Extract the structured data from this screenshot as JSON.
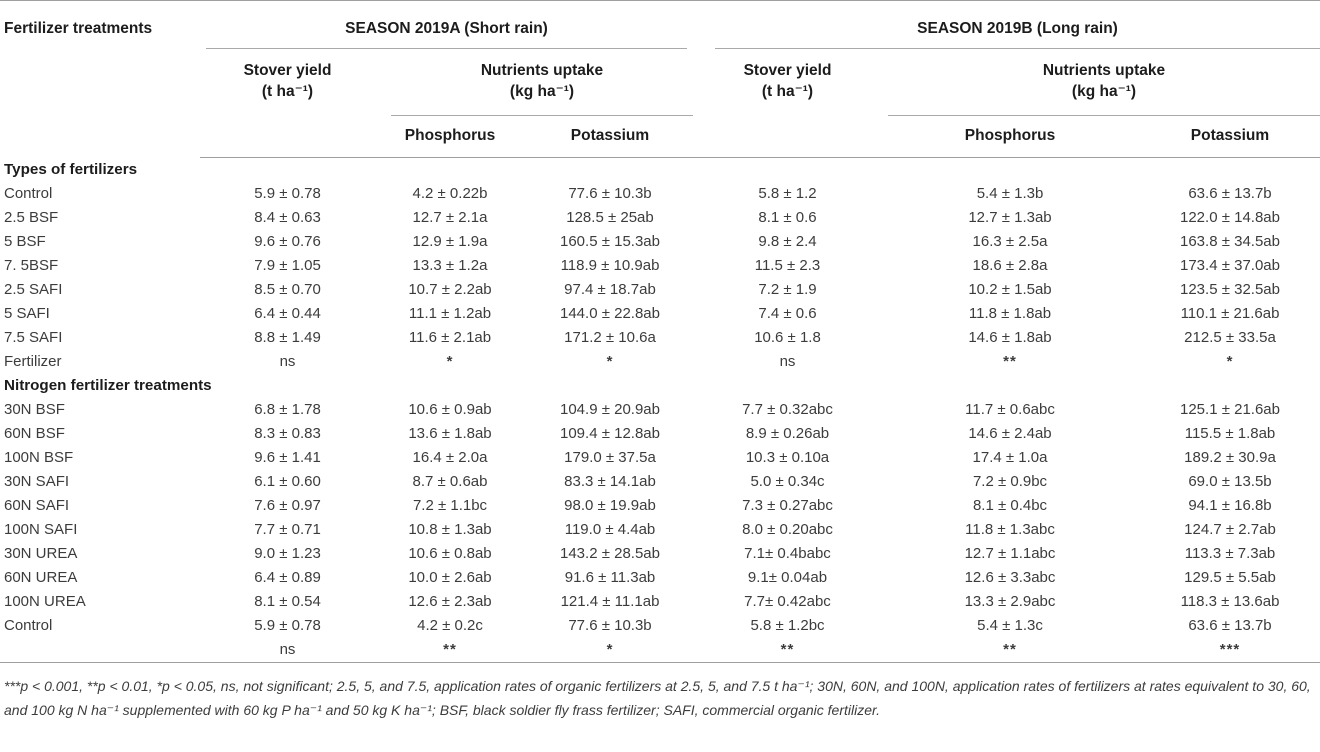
{
  "table": {
    "corner_header": "Fertilizer treatments",
    "season_a_title": "SEASON 2019A (Short rain)",
    "season_b_title": "SEASON 2019B (Long rain)",
    "stover_label": "Stover yield",
    "stover_unit": "(t ha⁻¹)",
    "uptake_label": "Nutrients uptake",
    "uptake_unit": "(kg ha⁻¹)",
    "phosphorus_label": "Phosphorus",
    "potassium_label": "Potassium",
    "body": [
      {
        "type": "section",
        "label": "Types of fertilizers"
      },
      {
        "type": "data",
        "label": "Control",
        "cells": [
          "5.9 ± 0.78",
          "4.2 ± 0.22b",
          "77.6 ± 10.3b",
          "5.8 ± 1.2",
          "5.4 ± 1.3b",
          "63.6 ± 13.7b"
        ]
      },
      {
        "type": "data",
        "label": "2.5 BSF",
        "cells": [
          "8.4 ± 0.63",
          "12.7 ± 2.1a",
          "128.5 ± 25ab",
          "8.1 ± 0.6",
          "12.7 ± 1.3ab",
          "122.0 ± 14.8ab"
        ]
      },
      {
        "type": "data",
        "label": "5 BSF",
        "cells": [
          "9.6 ± 0.76",
          "12.9 ± 1.9a",
          "160.5 ± 15.3ab",
          "9.8 ± 2.4",
          "16.3 ± 2.5a",
          "163.8 ± 34.5ab"
        ]
      },
      {
        "type": "data",
        "label": "7. 5BSF",
        "cells": [
          "7.9 ± 1.05",
          "13.3 ± 1.2a",
          "118.9 ± 10.9ab",
          "11.5 ± 2.3",
          "18.6 ± 2.8a",
          "173.4 ± 37.0ab"
        ]
      },
      {
        "type": "data",
        "label": "2.5 SAFI",
        "cells": [
          "8.5 ± 0.70",
          "10.7 ± 2.2ab",
          "97.4 ± 18.7ab",
          "7.2 ± 1.9",
          "10.2 ± 1.5ab",
          "123.5 ± 32.5ab"
        ]
      },
      {
        "type": "data",
        "label": "5 SAFI",
        "cells": [
          "6.4 ± 0.44",
          "11.1 ± 1.2ab",
          "144.0 ± 22.8ab",
          "7.4 ± 0.6",
          "11.8 ± 1.8ab",
          "110.1 ± 21.6ab"
        ]
      },
      {
        "type": "data",
        "label": "7.5 SAFI",
        "cells": [
          "8.8 ± 1.49",
          "11.6 ± 2.1ab",
          "171.2 ± 10.6a",
          "10.6 ± 1.8",
          "14.6 ± 1.8ab",
          "212.5 ± 33.5a"
        ]
      },
      {
        "type": "data",
        "label": "Fertilizer",
        "cells": [
          "ns",
          "*",
          "*",
          "ns",
          "**",
          "*"
        ]
      },
      {
        "type": "section",
        "label": "Nitrogen fertilizer treatments"
      },
      {
        "type": "data",
        "label": "30N BSF",
        "cells": [
          "6.8 ± 1.78",
          "10.6 ± 0.9ab",
          "104.9 ± 20.9ab",
          "7.7 ± 0.32abc",
          "11.7 ± 0.6abc",
          "125.1 ± 21.6ab"
        ]
      },
      {
        "type": "data",
        "label": "60N BSF",
        "cells": [
          "8.3 ± 0.83",
          "13.6 ± 1.8ab",
          "109.4 ± 12.8ab",
          "8.9 ± 0.26ab",
          "14.6 ± 2.4ab",
          "115.5 ± 1.8ab"
        ]
      },
      {
        "type": "data",
        "label": "100N BSF",
        "cells": [
          "9.6 ± 1.41",
          "16.4 ± 2.0a",
          "179.0 ± 37.5a",
          "10.3 ± 0.10a",
          "17.4 ± 1.0a",
          "189.2 ± 30.9a"
        ]
      },
      {
        "type": "data",
        "label": "30N SAFI",
        "cells": [
          "6.1 ± 0.60",
          "8.7 ± 0.6ab",
          "83.3 ± 14.1ab",
          "5.0 ± 0.34c",
          "7.2 ± 0.9bc",
          "69.0 ± 13.5b"
        ]
      },
      {
        "type": "data",
        "label": "60N SAFI",
        "cells": [
          "7.6 ± 0.97",
          "7.2 ± 1.1bc",
          "98.0 ± 19.9ab",
          "7.3 ± 0.27abc",
          "8.1 ± 0.4bc",
          "94.1 ± 16.8b"
        ]
      },
      {
        "type": "data",
        "label": "100N SAFI",
        "cells": [
          "7.7 ± 0.71",
          "10.8 ± 1.3ab",
          "119.0 ± 4.4ab",
          "8.0 ± 0.20abc",
          "11.8 ± 1.3abc",
          "124.7 ± 2.7ab"
        ]
      },
      {
        "type": "data",
        "label": "30N UREA",
        "cells": [
          "9.0 ± 1.23",
          "10.6 ± 0.8ab",
          "143.2 ± 28.5ab",
          "7.1± 0.4babc",
          "12.7 ± 1.1abc",
          "113.3 ± 7.3ab"
        ]
      },
      {
        "type": "data",
        "label": "60N UREA",
        "cells": [
          "6.4 ± 0.89",
          "10.0 ± 2.6ab",
          "91.6 ± 11.3ab",
          "9.1± 0.04ab",
          "12.6 ± 3.3abc",
          "129.5 ± 5.5ab"
        ]
      },
      {
        "type": "data",
        "label": "100N UREA",
        "cells": [
          "8.1 ± 0.54",
          "12.6 ± 2.3ab",
          "121.4 ± 11.1ab",
          "7.7± 0.42abc",
          "13.3 ± 2.9abc",
          "118.3 ± 13.6ab"
        ]
      },
      {
        "type": "data",
        "label": "Control",
        "cells": [
          "5.9 ± 0.78",
          "4.2 ± 0.2c",
          "77.6 ± 10.3b",
          "5.8 ± 1.2bc",
          "5.4 ± 1.3c",
          "63.6 ± 13.7b"
        ]
      },
      {
        "type": "data",
        "label": "",
        "cells": [
          "ns",
          "**",
          "*",
          "**",
          "**",
          "***"
        ]
      }
    ],
    "footnote": "***p < 0.001, **p < 0.01, *p < 0.05, ns, not significant; 2.5, 5, and 7.5, application rates of organic fertilizers at 2.5, 5, and 7.5 t ha⁻¹; 30N, 60N, and 100N, application rates of fertilizers at rates equivalent to 30, 60, and 100 kg N ha⁻¹ supplemented with 60 kg P ha⁻¹ and 50 kg K ha⁻¹; BSF, black soldier fly frass fertilizer; SAFI, commercial organic fertilizer."
  }
}
